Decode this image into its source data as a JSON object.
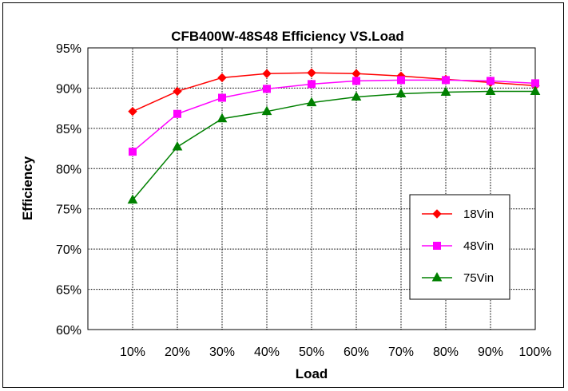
{
  "chart_data": {
    "type": "line",
    "title": "CFB400W-48S48 Efficiency VS.Load",
    "xlabel": "Load",
    "ylabel": "Efficiency",
    "categories": [
      "10%",
      "20%",
      "30%",
      "40%",
      "50%",
      "60%",
      "70%",
      "80%",
      "90%",
      "100%"
    ],
    "ylim": [
      60,
      95
    ],
    "yticks": [
      60,
      65,
      70,
      75,
      80,
      85,
      90,
      95
    ],
    "ytick_labels": [
      "60%",
      "65%",
      "70%",
      "75%",
      "80%",
      "85%",
      "90%",
      "95%"
    ],
    "grid": true,
    "legend_position": "lower-right",
    "series": [
      {
        "name": "18Vin",
        "color": "#ff0000",
        "marker": "diamond",
        "values": [
          87.1,
          89.6,
          91.3,
          91.8,
          91.9,
          91.8,
          91.5,
          91.1,
          90.7,
          90.3
        ]
      },
      {
        "name": "48Vin",
        "color": "#ff00ff",
        "marker": "square",
        "values": [
          82.1,
          86.8,
          88.8,
          89.9,
          90.5,
          90.9,
          91.0,
          91.0,
          90.9,
          90.6
        ]
      },
      {
        "name": "75Vin",
        "color": "#008000",
        "marker": "triangle",
        "values": [
          76.1,
          82.7,
          86.2,
          87.1,
          88.2,
          88.9,
          89.3,
          89.5,
          89.6,
          89.6
        ]
      }
    ]
  }
}
